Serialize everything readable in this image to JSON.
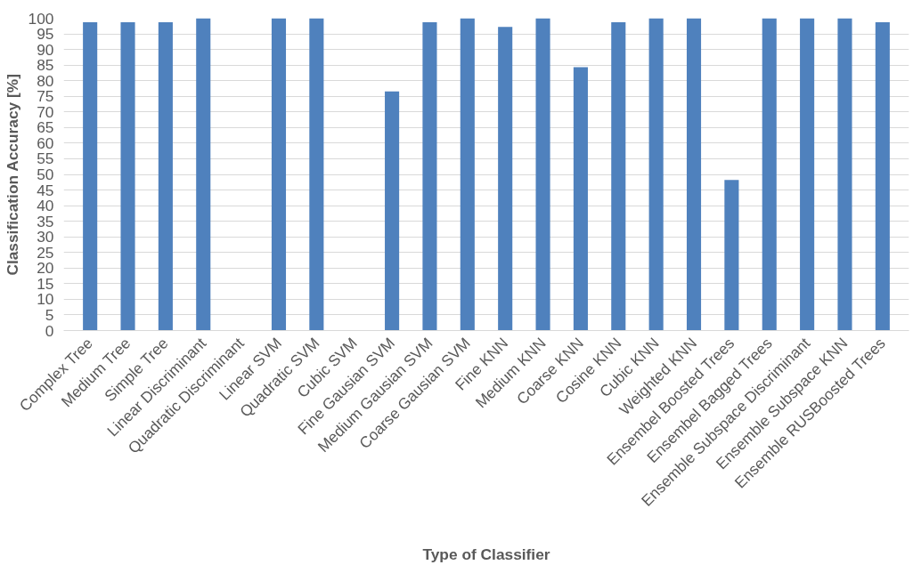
{
  "chart_data": {
    "type": "bar",
    "xlabel": "Type of Classifier",
    "ylabel": "Classification Accuracy [%]",
    "categories": [
      "Complex Tree",
      "Medium Tree",
      "Simple Tree",
      "Linear Discriminant",
      "Quadratic Discriminant",
      "Linear SVM",
      "Quadratic SVM",
      "Cubic SVM",
      "Fine Gausian SVM",
      "Medium Gausian SVM",
      "Coarse Gausian SVM",
      "Fine KNN",
      "Medium KNN",
      "Coarse KNN",
      "Cosine KNN",
      "Cubic KNN",
      "Weighted KNN",
      "Ensembel Boosted Trees",
      "Ensembel Bagged Trees",
      "Ensemble Subspace Discriminant",
      "Ensemble Subspace KNN",
      "Ensemble RUSBoosted Trees"
    ],
    "values": [
      98.7,
      98.7,
      98.7,
      100,
      null,
      100,
      100,
      null,
      76.6,
      98.7,
      100,
      97.2,
      100,
      84.3,
      98.7,
      100,
      100,
      48.2,
      100,
      100,
      100,
      98.7
    ],
    "color": "#4f81bd",
    "ylim": [
      0,
      100
    ],
    "yticks": [
      0,
      5,
      10,
      15,
      20,
      25,
      30,
      35,
      40,
      45,
      50,
      55,
      60,
      65,
      70,
      75,
      80,
      85,
      90,
      95,
      100
    ],
    "grid": "y"
  }
}
